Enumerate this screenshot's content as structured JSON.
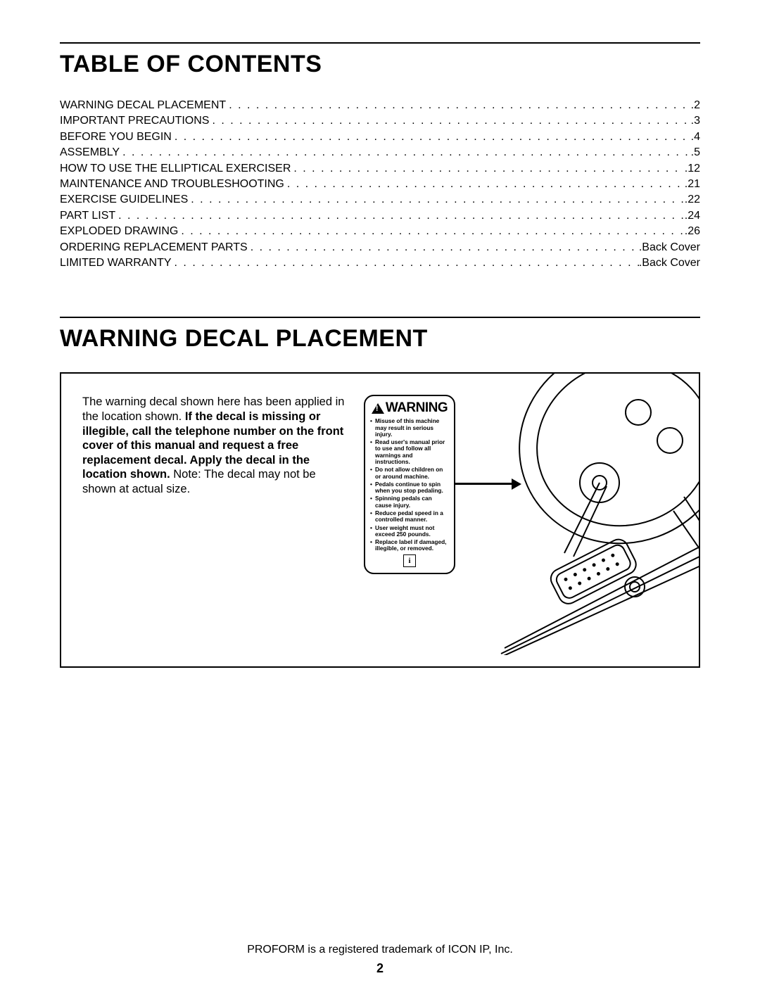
{
  "headings": {
    "toc": "TABLE OF CONTENTS",
    "decal": "WARNING DECAL PLACEMENT"
  },
  "toc": [
    {
      "label": "WARNING DECAL PLACEMENT",
      "page": "2"
    },
    {
      "label": "IMPORTANT PRECAUTIONS",
      "page": "3"
    },
    {
      "label": "BEFORE YOU BEGIN",
      "page": "4"
    },
    {
      "label": "ASSEMBLY",
      "page": "5"
    },
    {
      "label": "HOW TO USE THE ELLIPTICAL EXERCISER",
      "page": "12"
    },
    {
      "label": "MAINTENANCE AND TROUBLESHOOTING",
      "page": "21"
    },
    {
      "label": "EXERCISE GUIDELINES",
      "page": "22"
    },
    {
      "label": "PART LIST",
      "page": "24"
    },
    {
      "label": "EXPLODED DRAWING",
      "page": "26"
    },
    {
      "label": "ORDERING REPLACEMENT PARTS",
      "page": "Back Cover"
    },
    {
      "label": "LIMITED WARRANTY",
      "page": "Back Cover"
    }
  ],
  "placement": {
    "intro": "The warning decal shown here has been applied in the location shown. ",
    "bold": "If the decal is missing or illegible, call the telephone number on the front cover of this manual and request a free replacement decal. Apply the decal in the location shown.",
    "note": " Note: The decal may not be shown at actual size."
  },
  "warning_label": {
    "header": "WARNING",
    "bullets": [
      "Misuse of this machine may result in serious injury.",
      "Read user's manual prior to use and follow all warnings and instructions.",
      "Do not allow children on or around machine.",
      "Pedals continue to spin when you stop pedaling.",
      "Spinning pedals can cause injury.",
      "Reduce pedal speed in a controlled manner.",
      "User weight must not exceed 250 pounds.",
      "Replace label if damaged, illegible, or removed."
    ],
    "icon_char": "i"
  },
  "footer": "PROFORM is a registered trademark of ICON IP, Inc.",
  "page_number": "2",
  "dots": ". . . . . . . . . . . . . . . . . . . . . . . . . . . . . . . . . . . . . . . . . . . . . . . . . . . . . . . . . . . . . . . . . . . . . . . . . . . . . . . . . . . . . . . . . . . . . . . . . . . . . . . . . . . . . . . . . . . . . . . ."
}
